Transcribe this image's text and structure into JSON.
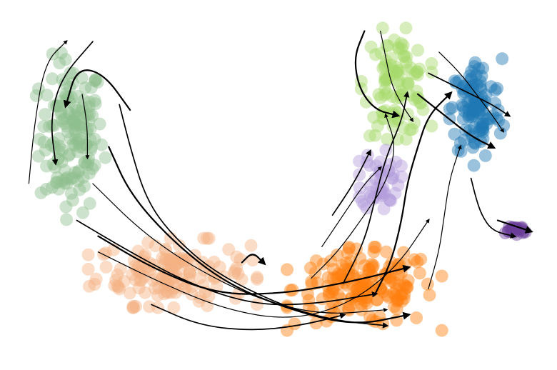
{
  "chart_data": {
    "type": "scatter",
    "subtype": "velocity-stream-embedding",
    "title": "",
    "xlabel": "",
    "ylabel": "",
    "axes_visible": false,
    "grid": false,
    "legend": "none",
    "xlim": [
      0,
      100
    ],
    "ylim": [
      0,
      66
    ],
    "clusters": [
      {
        "color": "#8fbf8f",
        "centroid": [
          11,
          42
        ],
        "spread": [
          5,
          12
        ],
        "n": 150
      },
      {
        "color": "#f4b183",
        "centroid": [
          30,
          16
        ],
        "spread": [
          12,
          5
        ],
        "n": 150
      },
      {
        "color": "#ff7f0e",
        "centroid": [
          66,
          13
        ],
        "spread": [
          11,
          6
        ],
        "n": 170
      },
      {
        "color": "#a6d96a",
        "centroid": [
          72,
          52
        ],
        "spread": [
          5,
          8
        ],
        "n": 100
      },
      {
        "color": "#1f77b4",
        "centroid": [
          87,
          47
        ],
        "spread": [
          4,
          8
        ],
        "n": 110
      },
      {
        "color": "#b39ddb",
        "centroid": [
          69,
          34
        ],
        "spread": [
          3,
          5
        ],
        "n": 50
      },
      {
        "color": "#6a3d9a",
        "centroid": [
          94,
          24
        ],
        "spread": [
          2.5,
          1
        ],
        "n": 20
      }
    ],
    "streams": [
      {
        "points": [
          [
            3,
            33
          ],
          [
            4,
            44
          ],
          [
            6,
            56
          ],
          [
            10,
            60
          ]
        ],
        "direction": "forward"
      },
      {
        "points": [
          [
            15,
            60
          ],
          [
            9,
            53
          ],
          [
            7,
            45
          ],
          [
            8,
            37
          ]
        ],
        "direction": "forward"
      },
      {
        "points": [
          [
            22,
            47
          ],
          [
            17,
            54
          ],
          [
            12,
            55
          ],
          [
            10,
            48
          ]
        ],
        "direction": "forward"
      },
      {
        "points": [
          [
            13,
            50
          ],
          [
            14,
            44
          ],
          [
            14,
            38
          ]
        ],
        "direction": "forward"
      },
      {
        "points": [
          [
            20,
            48
          ],
          [
            22,
            40
          ],
          [
            25,
            30
          ],
          [
            30,
            23
          ],
          [
            38,
            16
          ],
          [
            50,
            10
          ],
          [
            60,
            7
          ],
          [
            70,
            6
          ]
        ],
        "direction": "forward"
      },
      {
        "points": [
          [
            18,
            40
          ],
          [
            22,
            31
          ],
          [
            30,
            22
          ],
          [
            40,
            14
          ],
          [
            52,
            9
          ],
          [
            64,
            6
          ],
          [
            74,
            8
          ]
        ],
        "direction": "forward"
      },
      {
        "points": [
          [
            15,
            33
          ],
          [
            24,
            24
          ],
          [
            34,
            17
          ],
          [
            46,
            11
          ],
          [
            58,
            8
          ],
          [
            70,
            9
          ]
        ],
        "direction": "forward"
      },
      {
        "points": [
          [
            12,
            26
          ],
          [
            22,
            20
          ],
          [
            33,
            14
          ],
          [
            45,
            10
          ],
          [
            56,
            10
          ],
          [
            68,
            12
          ]
        ],
        "direction": "forward"
      },
      {
        "points": [
          [
            16,
            23
          ],
          [
            26,
            17
          ],
          [
            38,
            12
          ],
          [
            50,
            12
          ],
          [
            62,
            14
          ],
          [
            74,
            17
          ]
        ],
        "direction": "forward"
      },
      {
        "points": [
          [
            16,
            20
          ],
          [
            28,
            14
          ],
          [
            40,
            9
          ],
          [
            52,
            7
          ],
          [
            63,
            10
          ],
          [
            72,
            17
          ],
          [
            78,
            26
          ]
        ],
        "direction": "forward"
      },
      {
        "points": [
          [
            26,
            10
          ],
          [
            35,
            6
          ],
          [
            45,
            5
          ],
          [
            54,
            6
          ],
          [
            62,
            8
          ]
        ],
        "direction": "forward"
      },
      {
        "points": [
          [
            43,
            18
          ],
          [
            45,
            20
          ],
          [
            47,
            18
          ]
        ],
        "direction": "forward"
      },
      {
        "points": [
          [
            56,
            15
          ],
          [
            61,
            20
          ],
          [
            66,
            27
          ],
          [
            70,
            33
          ],
          [
            72,
            40
          ],
          [
            70,
            46
          ]
        ],
        "direction": "forward"
      },
      {
        "points": [
          [
            62,
            14
          ],
          [
            66,
            22
          ],
          [
            68,
            30
          ],
          [
            70,
            38
          ],
          [
            73,
            45
          ],
          [
            74,
            50
          ]
        ],
        "direction": "forward"
      },
      {
        "points": [
          [
            68,
            12
          ],
          [
            71,
            18
          ],
          [
            73,
            26
          ],
          [
            74,
            33
          ],
          [
            76,
            40
          ],
          [
            78,
            46
          ],
          [
            82,
            50
          ]
        ],
        "direction": "forward"
      },
      {
        "points": [
          [
            78,
            13
          ],
          [
            80,
            20
          ],
          [
            81,
            27
          ],
          [
            82,
            34
          ],
          [
            84,
            40
          ]
        ],
        "direction": "forward"
      },
      {
        "points": [
          [
            60,
            27
          ],
          [
            64,
            33
          ],
          [
            67,
            39
          ]
        ],
        "direction": "forward"
      },
      {
        "points": [
          [
            66,
            62
          ],
          [
            64,
            57
          ],
          [
            65,
            51
          ],
          [
            68,
            47
          ],
          [
            72,
            46
          ]
        ],
        "direction": "forward"
      },
      {
        "points": [
          [
            69,
            62
          ],
          [
            70,
            57
          ],
          [
            71,
            52
          ],
          [
            73,
            48
          ],
          [
            75,
            45
          ]
        ],
        "direction": "forward"
      },
      {
        "points": [
          [
            78,
            54
          ],
          [
            82,
            52
          ],
          [
            86,
            50
          ],
          [
            90,
            48
          ],
          [
            93,
            46
          ]
        ],
        "direction": "forward"
      },
      {
        "points": [
          [
            76,
            50
          ],
          [
            81,
            46
          ],
          [
            86,
            42
          ],
          [
            90,
            40
          ]
        ],
        "direction": "forward"
      },
      {
        "points": [
          [
            80,
            58
          ],
          [
            84,
            54
          ],
          [
            87,
            50
          ],
          [
            90,
            46
          ],
          [
            92,
            43
          ]
        ],
        "direction": "forward"
      },
      {
        "points": [
          [
            86,
            34
          ],
          [
            87,
            30
          ],
          [
            88,
            27
          ],
          [
            90,
            24
          ],
          [
            94,
            23
          ]
        ],
        "direction": "forward"
      },
      {
        "points": [
          [
            91,
            26
          ],
          [
            94,
            25
          ],
          [
            97,
            24
          ]
        ],
        "direction": "forward"
      },
      {
        "points": [
          [
            58,
            21
          ],
          [
            62,
            27
          ],
          [
            66,
            33
          ],
          [
            69,
            36
          ]
        ],
        "direction": "forward"
      }
    ]
  }
}
